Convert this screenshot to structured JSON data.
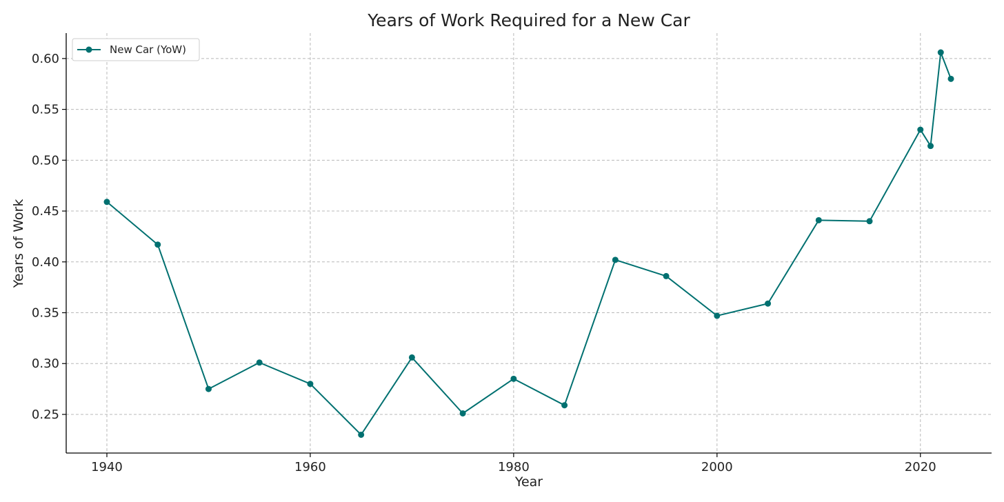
{
  "chart_data": {
    "type": "line",
    "title": "Years of Work Required for a New Car",
    "xlabel": "Year",
    "ylabel": "Years of Work",
    "xlim": [
      1936,
      2027
    ],
    "ylim": [
      0.212,
      0.625
    ],
    "x_ticks": [
      1940,
      1960,
      1980,
      2000,
      2020
    ],
    "y_ticks": [
      0.25,
      0.3,
      0.35,
      0.4,
      0.45,
      0.5,
      0.55,
      0.6
    ],
    "y_tick_labels": [
      "0.25",
      "0.30",
      "0.35",
      "0.40",
      "0.45",
      "0.50",
      "0.55",
      "0.60"
    ],
    "grid": true,
    "legend_position": "top-left",
    "series": [
      {
        "name": "New Car (YoW)",
        "color": "#007070",
        "marker": "circle",
        "x": [
          1940,
          1945,
          1950,
          1955,
          1960,
          1965,
          1970,
          1975,
          1980,
          1985,
          1990,
          1995,
          2000,
          2005,
          2010,
          2015,
          2020,
          2021,
          2022,
          2023
        ],
        "y": [
          0.459,
          0.417,
          0.275,
          0.301,
          0.28,
          0.23,
          0.306,
          0.251,
          0.285,
          0.259,
          0.402,
          0.386,
          0.347,
          0.359,
          0.441,
          0.44,
          0.53,
          0.514,
          0.606,
          0.58
        ]
      }
    ]
  }
}
